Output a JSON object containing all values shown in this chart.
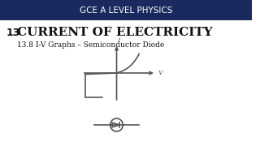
{
  "banner_text": "GCE A LEVEL PHYSICS",
  "banner_color": "#1a2a5e",
  "chapter_num": "13",
  "title": "CURRENT OF ELECTRICITY",
  "subtitle": "13.8 I-V Graphs – Semiconductor Diode",
  "bg_color": "#ffffff",
  "text_color": "#111111",
  "banner_text_color": "#ffffff",
  "graph_color": "#555555"
}
